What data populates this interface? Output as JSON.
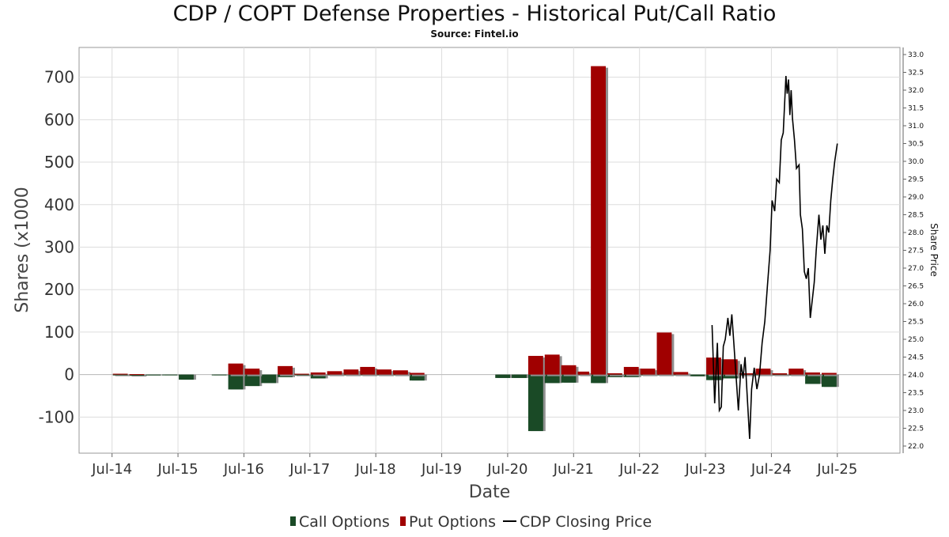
{
  "chart_data": {
    "type": "bar",
    "title": "CDP / COPT Defense Properties - Historical Put/Call Ratio",
    "subtitle": "Source: Fintel.io",
    "xlabel": "Date",
    "ylabel": "Shares (x1000",
    "y2label": "Share Price",
    "ylim": [
      -185,
      770
    ],
    "y2lim": [
      21.8,
      33.2
    ],
    "yticks": [
      -100,
      0,
      100,
      200,
      300,
      400,
      500,
      600,
      700
    ],
    "y2ticks": [
      "22.0",
      "22.5",
      "23.0",
      "23.5",
      "24.0",
      "24.5",
      "25.0",
      "25.5",
      "26.0",
      "26.5",
      "27.0",
      "27.5",
      "28.0",
      "28.5",
      "29.0",
      "29.5",
      "30.0",
      "30.5",
      "31.0",
      "31.5",
      "32.0",
      "32.5",
      "33.0"
    ],
    "xticks": [
      {
        "label": "Jul-14",
        "t": 2014.5
      },
      {
        "label": "Jul-15",
        "t": 2015.5
      },
      {
        "label": "Jul-16",
        "t": 2016.5
      },
      {
        "label": "Jul-17",
        "t": 2017.5
      },
      {
        "label": "Jul-18",
        "t": 2018.5
      },
      {
        "label": "Jul-19",
        "t": 2019.5
      },
      {
        "label": "Jul-20",
        "t": 2020.5
      },
      {
        "label": "Jul-21",
        "t": 2021.5
      },
      {
        "label": "Jul-22",
        "t": 2022.5
      },
      {
        "label": "Jul-23",
        "t": 2023.5
      },
      {
        "label": "Jul-24",
        "t": 2024.5
      },
      {
        "label": "Jul-25",
        "t": 2025.5
      }
    ],
    "xlim": [
      2014.0,
      2026.45
    ],
    "grid": true,
    "legend_position": "bottom",
    "colors": {
      "call": "#1a4a26",
      "put": "#a00000",
      "shadow": "#909090",
      "price": "#000000"
    },
    "series": [
      {
        "name": "Call Options",
        "periods": [
          {
            "start": 2014.5,
            "end": 2014.75,
            "value": -2
          },
          {
            "start": 2014.75,
            "end": 2015.0,
            "value": -3
          },
          {
            "start": 2015.0,
            "end": 2015.25,
            "value": -2
          },
          {
            "start": 2015.25,
            "end": 2015.5,
            "value": -1
          },
          {
            "start": 2015.5,
            "end": 2015.75,
            "value": -12
          },
          {
            "start": 2016.0,
            "end": 2016.25,
            "value": -1
          },
          {
            "start": 2016.25,
            "end": 2016.5,
            "value": -35
          },
          {
            "start": 2016.5,
            "end": 2016.75,
            "value": -27
          },
          {
            "start": 2016.75,
            "end": 2017.0,
            "value": -20
          },
          {
            "start": 2017.0,
            "end": 2017.25,
            "value": -6
          },
          {
            "start": 2017.25,
            "end": 2017.5,
            "value": -2
          },
          {
            "start": 2017.5,
            "end": 2017.75,
            "value": -9
          },
          {
            "start": 2017.75,
            "end": 2018.0,
            "value": -1
          },
          {
            "start": 2018.0,
            "end": 2018.25,
            "value": -1
          },
          {
            "start": 2018.25,
            "end": 2018.5,
            "value": -1
          },
          {
            "start": 2018.5,
            "end": 2018.75,
            "value": -1
          },
          {
            "start": 2018.75,
            "end": 2019.0,
            "value": -1
          },
          {
            "start": 2019.0,
            "end": 2019.25,
            "value": -14
          },
          {
            "start": 2020.3,
            "end": 2020.55,
            "value": -8
          },
          {
            "start": 2020.55,
            "end": 2020.8,
            "value": -8
          },
          {
            "start": 2020.8,
            "end": 2021.05,
            "value": -133
          },
          {
            "start": 2021.05,
            "end": 2021.3,
            "value": -20
          },
          {
            "start": 2021.3,
            "end": 2021.55,
            "value": -19
          },
          {
            "start": 2021.55,
            "end": 2021.75,
            "value": -1
          },
          {
            "start": 2021.75,
            "end": 2022.0,
            "value": -20
          },
          {
            "start": 2022.0,
            "end": 2022.25,
            "value": -6
          },
          {
            "start": 2022.25,
            "end": 2022.5,
            "value": -6
          },
          {
            "start": 2022.5,
            "end": 2022.75,
            "value": -2
          },
          {
            "start": 2022.75,
            "end": 2023.0,
            "value": -1
          },
          {
            "start": 2023.0,
            "end": 2023.25,
            "value": -1
          },
          {
            "start": 2023.25,
            "end": 2023.5,
            "value": -4
          },
          {
            "start": 2023.5,
            "end": 2023.75,
            "value": -13
          },
          {
            "start": 2023.75,
            "end": 2024.0,
            "value": -9
          },
          {
            "start": 2024.0,
            "end": 2024.25,
            "value": -2
          },
          {
            "start": 2024.25,
            "end": 2024.5,
            "value": -2
          },
          {
            "start": 2024.5,
            "end": 2024.75,
            "value": -2
          },
          {
            "start": 2024.75,
            "end": 2025.0,
            "value": -2
          },
          {
            "start": 2025.0,
            "end": 2025.25,
            "value": -22
          },
          {
            "start": 2025.25,
            "end": 2025.5,
            "value": -29
          }
        ]
      },
      {
        "name": "Put Options",
        "periods": [
          {
            "start": 2014.5,
            "end": 2014.75,
            "value": 2
          },
          {
            "start": 2014.75,
            "end": 2015.0,
            "value": 1
          },
          {
            "start": 2016.25,
            "end": 2016.5,
            "value": 26
          },
          {
            "start": 2016.5,
            "end": 2016.75,
            "value": 14
          },
          {
            "start": 2017.0,
            "end": 2017.25,
            "value": 20
          },
          {
            "start": 2017.25,
            "end": 2017.5,
            "value": 2
          },
          {
            "start": 2017.5,
            "end": 2017.75,
            "value": 5
          },
          {
            "start": 2017.75,
            "end": 2018.0,
            "value": 8
          },
          {
            "start": 2018.0,
            "end": 2018.25,
            "value": 12
          },
          {
            "start": 2018.25,
            "end": 2018.5,
            "value": 18
          },
          {
            "start": 2018.5,
            "end": 2018.75,
            "value": 12
          },
          {
            "start": 2018.75,
            "end": 2019.0,
            "value": 10
          },
          {
            "start": 2019.0,
            "end": 2019.25,
            "value": 4
          },
          {
            "start": 2020.8,
            "end": 2021.05,
            "value": 44
          },
          {
            "start": 2021.05,
            "end": 2021.3,
            "value": 47
          },
          {
            "start": 2021.3,
            "end": 2021.55,
            "value": 22
          },
          {
            "start": 2021.55,
            "end": 2021.75,
            "value": 7
          },
          {
            "start": 2021.75,
            "end": 2022.0,
            "value": 726
          },
          {
            "start": 2022.0,
            "end": 2022.25,
            "value": 3
          },
          {
            "start": 2022.25,
            "end": 2022.5,
            "value": 18
          },
          {
            "start": 2022.5,
            "end": 2022.75,
            "value": 14
          },
          {
            "start": 2022.75,
            "end": 2023.0,
            "value": 99
          },
          {
            "start": 2023.0,
            "end": 2023.25,
            "value": 6
          },
          {
            "start": 2023.5,
            "end": 2023.75,
            "value": 40
          },
          {
            "start": 2023.75,
            "end": 2024.0,
            "value": 36
          },
          {
            "start": 2024.0,
            "end": 2024.25,
            "value": 3
          },
          {
            "start": 2024.25,
            "end": 2024.5,
            "value": 14
          },
          {
            "start": 2024.5,
            "end": 2024.75,
            "value": 3
          },
          {
            "start": 2024.75,
            "end": 2025.0,
            "value": 14
          },
          {
            "start": 2025.0,
            "end": 2025.25,
            "value": 5
          },
          {
            "start": 2025.25,
            "end": 2025.5,
            "value": 4
          }
        ]
      },
      {
        "name": "CDP Closing Price",
        "type": "line",
        "points": [
          [
            2023.6,
            25.4
          ],
          [
            2023.64,
            23.2
          ],
          [
            2023.68,
            24.9
          ],
          [
            2023.71,
            23.0
          ],
          [
            2023.74,
            23.1
          ],
          [
            2023.77,
            24.8
          ],
          [
            2023.8,
            25.0
          ],
          [
            2023.84,
            25.6
          ],
          [
            2023.87,
            25.1
          ],
          [
            2023.9,
            25.7
          ],
          [
            2023.93,
            24.9
          ],
          [
            2024.0,
            23.0
          ],
          [
            2024.04,
            24.3
          ],
          [
            2024.07,
            23.9
          ],
          [
            2024.1,
            24.5
          ],
          [
            2024.13,
            23.5
          ],
          [
            2024.17,
            22.2
          ],
          [
            2024.2,
            23.6
          ],
          [
            2024.24,
            24.2
          ],
          [
            2024.28,
            23.6
          ],
          [
            2024.32,
            24.0
          ],
          [
            2024.36,
            24.9
          ],
          [
            2024.4,
            25.5
          ],
          [
            2024.44,
            26.5
          ],
          [
            2024.48,
            27.5
          ],
          [
            2024.51,
            28.9
          ],
          [
            2024.55,
            28.6
          ],
          [
            2024.58,
            29.5
          ],
          [
            2024.62,
            29.4
          ],
          [
            2024.65,
            30.6
          ],
          [
            2024.68,
            30.8
          ],
          [
            2024.72,
            32.4
          ],
          [
            2024.74,
            31.9
          ],
          [
            2024.76,
            32.3
          ],
          [
            2024.78,
            31.3
          ],
          [
            2024.8,
            32.0
          ],
          [
            2024.82,
            31.2
          ],
          [
            2024.85,
            30.6
          ],
          [
            2024.88,
            29.8
          ],
          [
            2024.92,
            29.9
          ],
          [
            2024.94,
            28.5
          ],
          [
            2024.97,
            28.1
          ],
          [
            2025.0,
            26.9
          ],
          [
            2025.03,
            26.7
          ],
          [
            2025.06,
            27.0
          ],
          [
            2025.09,
            25.6
          ],
          [
            2025.12,
            26.1
          ],
          [
            2025.15,
            26.6
          ],
          [
            2025.18,
            27.5
          ],
          [
            2025.22,
            28.5
          ],
          [
            2025.25,
            27.8
          ],
          [
            2025.28,
            28.2
          ],
          [
            2025.31,
            27.4
          ],
          [
            2025.34,
            28.2
          ],
          [
            2025.37,
            28.0
          ],
          [
            2025.4,
            28.9
          ],
          [
            2025.43,
            29.5
          ],
          [
            2025.46,
            30.0
          ],
          [
            2025.5,
            30.5
          ]
        ]
      }
    ]
  }
}
